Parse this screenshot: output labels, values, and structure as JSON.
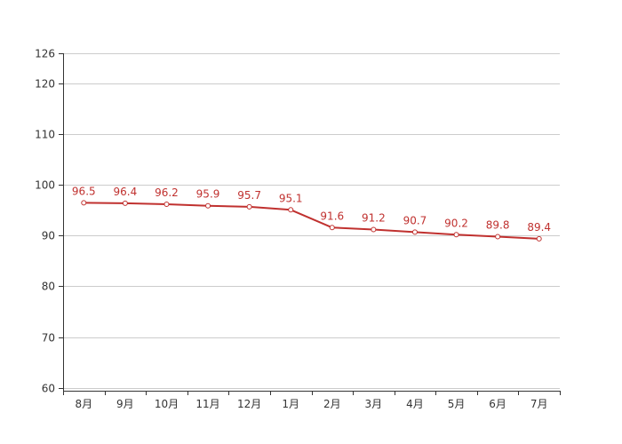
{
  "chart_data": {
    "type": "line",
    "title": "",
    "xlabel": "",
    "ylabel": "",
    "categories": [
      "8月",
      "9月",
      "10月",
      "11月",
      "12月",
      "1月",
      "2月",
      "3月",
      "4月",
      "5月",
      "6月",
      "7月"
    ],
    "series": [
      {
        "values": [
          96.5,
          96.4,
          96.2,
          95.9,
          95.7,
          95.1,
          91.6,
          91.2,
          90.7,
          90.2,
          89.8,
          89.4
        ]
      }
    ],
    "ylim": [
      59.4,
      126
    ],
    "yticks": [
      60,
      70,
      80,
      90,
      100,
      110,
      120,
      126
    ],
    "grid": true,
    "data_labels": true,
    "colors": {
      "line": "#c0312f",
      "grid": "#cccccc",
      "axis": "#333333",
      "marker_fill": "#ffffff"
    }
  }
}
